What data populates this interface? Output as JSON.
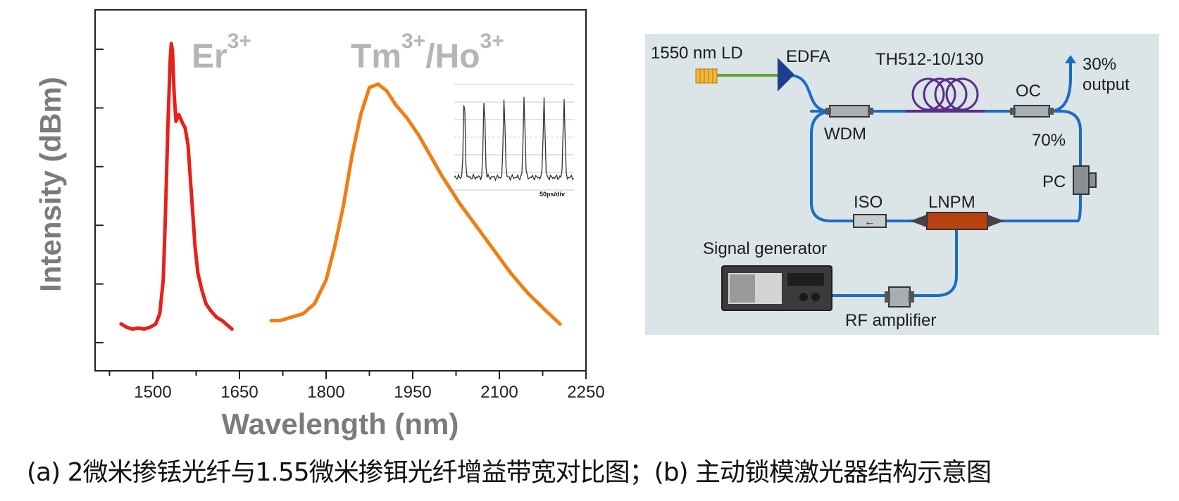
{
  "chart_data": {
    "type": "line",
    "xlabel": "Wavelength (nm)",
    "ylabel": "Intensity (dBm)",
    "xlim": [
      1400,
      2250
    ],
    "x_ticks": [
      1500,
      1650,
      1800,
      1950,
      2100,
      2250
    ],
    "x_tick_labels": [
      "1500",
      "1650",
      "1800",
      "1950",
      "2100",
      "2250"
    ],
    "y_ticks_count": 6,
    "grid": false,
    "series": [
      {
        "name": "Er",
        "color": "#e8201a",
        "x": [
          1445,
          1455,
          1465,
          1475,
          1485,
          1495,
          1505,
          1512,
          1518,
          1522,
          1526,
          1530,
          1532,
          1534,
          1537,
          1540,
          1545,
          1550,
          1556,
          1561,
          1565,
          1569,
          1573,
          1578,
          1585,
          1592,
          1600,
          1610,
          1620,
          1630,
          1637
        ],
        "y": [
          2,
          1,
          0.5,
          0.8,
          0.5,
          1,
          2,
          5,
          15,
          35,
          60,
          80,
          85,
          83,
          70,
          62,
          64,
          62,
          60,
          55,
          45,
          35,
          25,
          17,
          12,
          8,
          6,
          4,
          3,
          1.5,
          0.5
        ]
      },
      {
        "name": "Tm/Ho",
        "color": "#f07e12",
        "x": [
          1705,
          1720,
          1740,
          1760,
          1780,
          1800,
          1815,
          1830,
          1845,
          1860,
          1875,
          1890,
          1905,
          1920,
          1940,
          1960,
          1980,
          2000,
          2030,
          2060,
          2090,
          2120,
          2150,
          2180,
          2205
        ],
        "y": [
          3,
          3,
          4,
          5,
          8,
          15,
          25,
          37,
          52,
          64,
          72,
          73,
          71,
          67,
          63,
          58,
          52,
          46,
          38,
          31,
          24,
          17,
          11,
          6,
          2
        ]
      }
    ],
    "annotations": [
      {
        "text": "Er",
        "sup": "3+"
      },
      {
        "text": "Tm",
        "sup": "3+",
        "text2": "/Ho",
        "sup2": "3+"
      }
    ],
    "inset": {
      "label": "50ps/div",
      "pulse_count": 6
    }
  },
  "diagram": {
    "background": "#dbe4e6",
    "fiber_color": "#1a6cc6",
    "labels": {
      "ld": "1550 nm LD",
      "edfa": "EDFA",
      "th": "TH512-10/130",
      "oc": "OC",
      "output_pct": "30%",
      "output_word": "output",
      "wdm": "WDM",
      "pct70": "70%",
      "pc": "PC",
      "iso": "ISO",
      "lnpm": "LNPM",
      "signal_generator": "Signal generator",
      "rf_amplifier": "RF amplifier"
    }
  },
  "caption": "(a) 2微米掺铥光纤与1.55微米掺铒光纤增益带宽对比图；(b) 主动锁模激光器结构示意图"
}
